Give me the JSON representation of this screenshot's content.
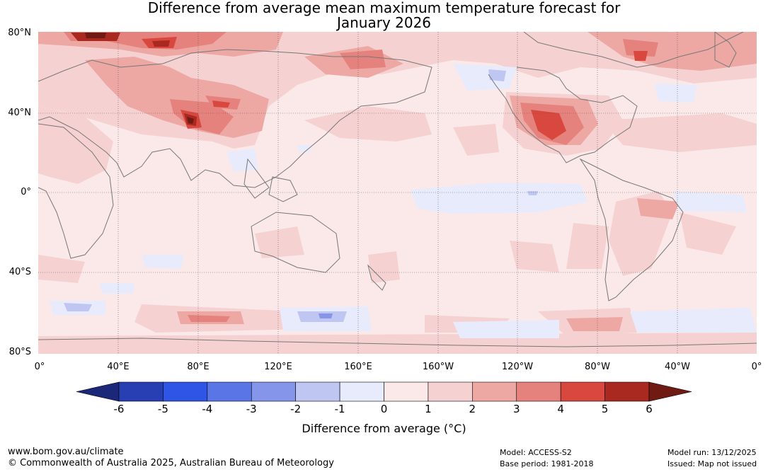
{
  "title": {
    "line1": "Difference from average mean maximum temperature forecast for",
    "line2": "January 2026"
  },
  "map": {
    "lat_labels": [
      "80°N",
      "40°N",
      "0°",
      "40°S",
      "80°S"
    ],
    "lon_labels": [
      "0°",
      "40°E",
      "80°E",
      "120°E",
      "160°E",
      "160°W",
      "120°W",
      "80°W",
      "40°W",
      "0°"
    ],
    "background_color": "#fbe9e9",
    "coastline_color": "#777777"
  },
  "colorbar": {
    "ticks": [
      "-6",
      "-5",
      "-4",
      "-3",
      "-2",
      "-1",
      "0",
      "1",
      "2",
      "3",
      "4",
      "5",
      "6"
    ],
    "colors": [
      "#1b2778",
      "#283fb3",
      "#2f55e6",
      "#5a75e6",
      "#8595e9",
      "#bfc6f2",
      "#e8ebfb",
      "#fbe9e9",
      "#f5d2d1",
      "#eda8a4",
      "#e6827d",
      "#d8483f",
      "#a9281f",
      "#701a14"
    ],
    "label": "Difference from average (°C)"
  },
  "footer": {
    "url": "www.bom.gov.au/climate",
    "copyright": "© Commonwealth of Australia 2025, Australian Bureau of Meteorology",
    "model": "Model: ACCESS-S2",
    "base_period": "Base period: 1981-2018",
    "model_run": "Model run: 13/12/2025",
    "issued": "Issued: Map not issued"
  }
}
